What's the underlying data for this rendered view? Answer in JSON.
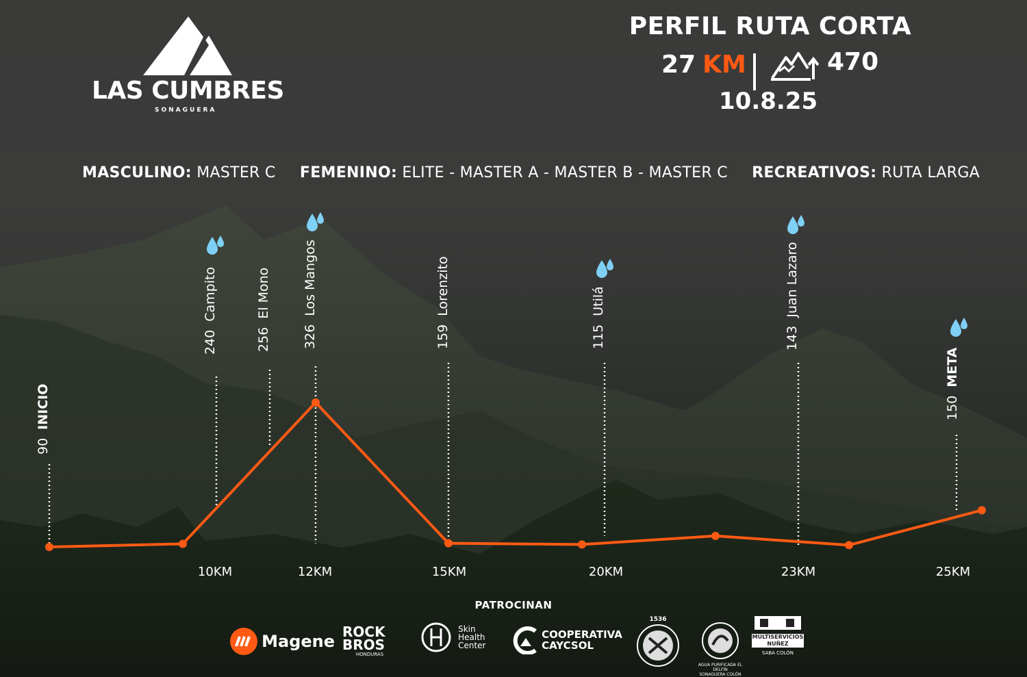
{
  "brand": {
    "name": "LAS CUMBRES",
    "subtitle": "SONAGUERA"
  },
  "header": {
    "title": "PERFIL RUTA CORTA",
    "distance_value": "27",
    "distance_unit": "KM",
    "elevation_gain": "470",
    "elevation_icon": "mountain-ascent-icon",
    "date": "10.8.25"
  },
  "categories": {
    "masculino_label": "MASCULINO:",
    "masculino_value": "MASTER C",
    "femenino_label": "FEMENINO:",
    "femenino_value": "ELITE - MASTER A - MASTER B - MASTER C",
    "recreativos_label": "RECREATIVOS:",
    "recreativos_value": "RUTA LARGA"
  },
  "chart_data": {
    "type": "line",
    "series": [
      {
        "elevations": [
          90,
          95,
          326,
          96,
          94,
          108,
          93,
          150
        ]
      }
    ],
    "waypoints": [
      {
        "elevation": "90",
        "name": "INICIO",
        "bold": true,
        "water": false
      },
      {
        "elevation": "240",
        "name": "Campito",
        "bold": false,
        "water": true
      },
      {
        "elevation": "256",
        "name": "El Mono",
        "bold": false,
        "water": false
      },
      {
        "elevation": "326",
        "name": "Los Mangos",
        "bold": false,
        "water": true
      },
      {
        "elevation": "159",
        "name": "Lorenzito",
        "bold": false,
        "water": false
      },
      {
        "elevation": "115",
        "name": "Utilá",
        "bold": false,
        "water": true
      },
      {
        "elevation": "143",
        "name": "Juan Lazaro",
        "bold": false,
        "water": true
      },
      {
        "elevation": "150",
        "name": "META",
        "bold": true,
        "water": true
      }
    ],
    "x_ticks": [
      "10KM",
      "12KM",
      "15KM",
      "20KM",
      "23KM",
      "25KM"
    ],
    "line_color": "#ff5a14",
    "water_icon": "water-drop-icon"
  },
  "sponsors": {
    "title": "PATROCINAN",
    "items": [
      {
        "name": "Magene",
        "icon": "magene-logo-icon"
      },
      {
        "name": "ROCK BROS",
        "sub": "HONDURAS"
      },
      {
        "name": "Skin Health Center"
      },
      {
        "name": "COOPERATIVA CAYCSOL"
      },
      {
        "name": "1536",
        "icon": "crest-logo-icon"
      },
      {
        "name": "AGUA PURIFICADA EL DELFÍN",
        "sub": "SONAGUERA COLÓN"
      },
      {
        "name": "MULTISERVICIOS NUÑEZ",
        "sub": "SABA COLÓN"
      }
    ]
  },
  "colors": {
    "accent": "#ff5a14",
    "text": "#ffffff",
    "water": "#7fd0f5"
  }
}
